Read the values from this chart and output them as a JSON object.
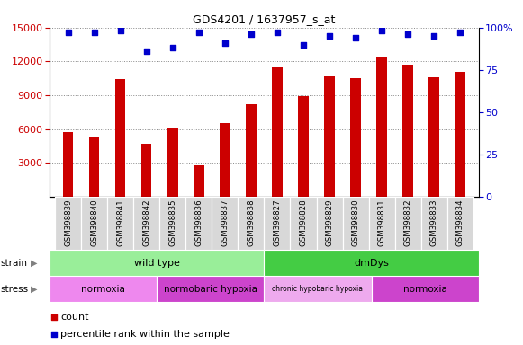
{
  "title": "GDS4201 / 1637957_s_at",
  "samples": [
    "GSM398839",
    "GSM398840",
    "GSM398841",
    "GSM398842",
    "GSM398835",
    "GSM398836",
    "GSM398837",
    "GSM398838",
    "GSM398827",
    "GSM398828",
    "GSM398829",
    "GSM398830",
    "GSM398831",
    "GSM398832",
    "GSM398833",
    "GSM398834"
  ],
  "counts": [
    5700,
    5300,
    10400,
    4700,
    6100,
    2800,
    6500,
    8200,
    11500,
    8900,
    10700,
    10500,
    12400,
    11700,
    10600,
    11100
  ],
  "percentile_ranks": [
    97,
    97,
    98,
    86,
    88,
    97,
    91,
    96,
    97,
    90,
    95,
    94,
    98,
    96,
    95,
    97
  ],
  "bar_color": "#cc0000",
  "dot_color": "#0000cc",
  "ylim_left": [
    0,
    15000
  ],
  "ylim_right": [
    0,
    100
  ],
  "yticks_left": [
    3000,
    6000,
    9000,
    12000,
    15000
  ],
  "yticks_right": [
    0,
    25,
    50,
    75,
    100
  ],
  "strain_labels": [
    {
      "text": "wild type",
      "start": 0,
      "end": 8,
      "color": "#99ee99"
    },
    {
      "text": "dmDys",
      "start": 8,
      "end": 16,
      "color": "#44cc44"
    }
  ],
  "stress_labels": [
    {
      "text": "normoxia",
      "start": 0,
      "end": 4,
      "color": "#ee88ee"
    },
    {
      "text": "normobaric hypoxia",
      "start": 4,
      "end": 8,
      "color": "#cc44cc"
    },
    {
      "text": "chronic hypobaric hypoxia",
      "start": 8,
      "end": 12,
      "color": "#eeaaee"
    },
    {
      "text": "normoxia",
      "start": 12,
      "end": 16,
      "color": "#cc44cc"
    }
  ],
  "background_color": "#ffffff",
  "grid_color": "#888888",
  "tick_bg_color": "#d8d8d8"
}
